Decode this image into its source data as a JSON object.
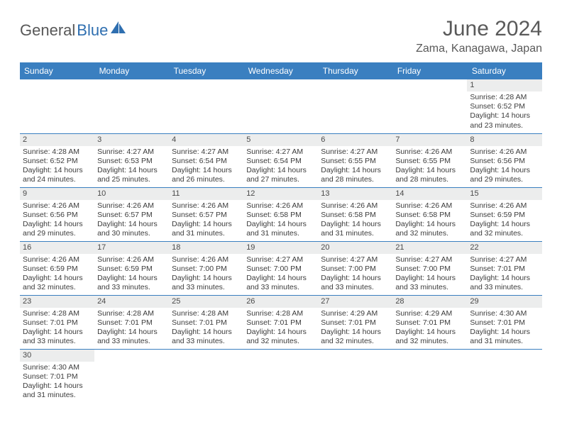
{
  "brand": {
    "part1": "General",
    "part2": "Blue"
  },
  "title": "June 2024",
  "location": "Zama, Kanagawa, Japan",
  "colors": {
    "header_bg": "#3a7fc0",
    "header_text": "#ffffff",
    "daynum_bg": "#eceded",
    "text": "#3c3c3c",
    "title_text": "#5a5a5a",
    "row_border": "#3a7fc0"
  },
  "weekdays": [
    "Sunday",
    "Monday",
    "Tuesday",
    "Wednesday",
    "Thursday",
    "Friday",
    "Saturday"
  ],
  "weeks": [
    [
      null,
      null,
      null,
      null,
      null,
      null,
      {
        "n": "1",
        "sunrise": "Sunrise: 4:28 AM",
        "sunset": "Sunset: 6:52 PM",
        "day1": "Daylight: 14 hours",
        "day2": "and 23 minutes."
      }
    ],
    [
      {
        "n": "2",
        "sunrise": "Sunrise: 4:28 AM",
        "sunset": "Sunset: 6:52 PM",
        "day1": "Daylight: 14 hours",
        "day2": "and 24 minutes."
      },
      {
        "n": "3",
        "sunrise": "Sunrise: 4:27 AM",
        "sunset": "Sunset: 6:53 PM",
        "day1": "Daylight: 14 hours",
        "day2": "and 25 minutes."
      },
      {
        "n": "4",
        "sunrise": "Sunrise: 4:27 AM",
        "sunset": "Sunset: 6:54 PM",
        "day1": "Daylight: 14 hours",
        "day2": "and 26 minutes."
      },
      {
        "n": "5",
        "sunrise": "Sunrise: 4:27 AM",
        "sunset": "Sunset: 6:54 PM",
        "day1": "Daylight: 14 hours",
        "day2": "and 27 minutes."
      },
      {
        "n": "6",
        "sunrise": "Sunrise: 4:27 AM",
        "sunset": "Sunset: 6:55 PM",
        "day1": "Daylight: 14 hours",
        "day2": "and 28 minutes."
      },
      {
        "n": "7",
        "sunrise": "Sunrise: 4:26 AM",
        "sunset": "Sunset: 6:55 PM",
        "day1": "Daylight: 14 hours",
        "day2": "and 28 minutes."
      },
      {
        "n": "8",
        "sunrise": "Sunrise: 4:26 AM",
        "sunset": "Sunset: 6:56 PM",
        "day1": "Daylight: 14 hours",
        "day2": "and 29 minutes."
      }
    ],
    [
      {
        "n": "9",
        "sunrise": "Sunrise: 4:26 AM",
        "sunset": "Sunset: 6:56 PM",
        "day1": "Daylight: 14 hours",
        "day2": "and 29 minutes."
      },
      {
        "n": "10",
        "sunrise": "Sunrise: 4:26 AM",
        "sunset": "Sunset: 6:57 PM",
        "day1": "Daylight: 14 hours",
        "day2": "and 30 minutes."
      },
      {
        "n": "11",
        "sunrise": "Sunrise: 4:26 AM",
        "sunset": "Sunset: 6:57 PM",
        "day1": "Daylight: 14 hours",
        "day2": "and 31 minutes."
      },
      {
        "n": "12",
        "sunrise": "Sunrise: 4:26 AM",
        "sunset": "Sunset: 6:58 PM",
        "day1": "Daylight: 14 hours",
        "day2": "and 31 minutes."
      },
      {
        "n": "13",
        "sunrise": "Sunrise: 4:26 AM",
        "sunset": "Sunset: 6:58 PM",
        "day1": "Daylight: 14 hours",
        "day2": "and 31 minutes."
      },
      {
        "n": "14",
        "sunrise": "Sunrise: 4:26 AM",
        "sunset": "Sunset: 6:58 PM",
        "day1": "Daylight: 14 hours",
        "day2": "and 32 minutes."
      },
      {
        "n": "15",
        "sunrise": "Sunrise: 4:26 AM",
        "sunset": "Sunset: 6:59 PM",
        "day1": "Daylight: 14 hours",
        "day2": "and 32 minutes."
      }
    ],
    [
      {
        "n": "16",
        "sunrise": "Sunrise: 4:26 AM",
        "sunset": "Sunset: 6:59 PM",
        "day1": "Daylight: 14 hours",
        "day2": "and 32 minutes."
      },
      {
        "n": "17",
        "sunrise": "Sunrise: 4:26 AM",
        "sunset": "Sunset: 6:59 PM",
        "day1": "Daylight: 14 hours",
        "day2": "and 33 minutes."
      },
      {
        "n": "18",
        "sunrise": "Sunrise: 4:26 AM",
        "sunset": "Sunset: 7:00 PM",
        "day1": "Daylight: 14 hours",
        "day2": "and 33 minutes."
      },
      {
        "n": "19",
        "sunrise": "Sunrise: 4:27 AM",
        "sunset": "Sunset: 7:00 PM",
        "day1": "Daylight: 14 hours",
        "day2": "and 33 minutes."
      },
      {
        "n": "20",
        "sunrise": "Sunrise: 4:27 AM",
        "sunset": "Sunset: 7:00 PM",
        "day1": "Daylight: 14 hours",
        "day2": "and 33 minutes."
      },
      {
        "n": "21",
        "sunrise": "Sunrise: 4:27 AM",
        "sunset": "Sunset: 7:00 PM",
        "day1": "Daylight: 14 hours",
        "day2": "and 33 minutes."
      },
      {
        "n": "22",
        "sunrise": "Sunrise: 4:27 AM",
        "sunset": "Sunset: 7:01 PM",
        "day1": "Daylight: 14 hours",
        "day2": "and 33 minutes."
      }
    ],
    [
      {
        "n": "23",
        "sunrise": "Sunrise: 4:28 AM",
        "sunset": "Sunset: 7:01 PM",
        "day1": "Daylight: 14 hours",
        "day2": "and 33 minutes."
      },
      {
        "n": "24",
        "sunrise": "Sunrise: 4:28 AM",
        "sunset": "Sunset: 7:01 PM",
        "day1": "Daylight: 14 hours",
        "day2": "and 33 minutes."
      },
      {
        "n": "25",
        "sunrise": "Sunrise: 4:28 AM",
        "sunset": "Sunset: 7:01 PM",
        "day1": "Daylight: 14 hours",
        "day2": "and 33 minutes."
      },
      {
        "n": "26",
        "sunrise": "Sunrise: 4:28 AM",
        "sunset": "Sunset: 7:01 PM",
        "day1": "Daylight: 14 hours",
        "day2": "and 32 minutes."
      },
      {
        "n": "27",
        "sunrise": "Sunrise: 4:29 AM",
        "sunset": "Sunset: 7:01 PM",
        "day1": "Daylight: 14 hours",
        "day2": "and 32 minutes."
      },
      {
        "n": "28",
        "sunrise": "Sunrise: 4:29 AM",
        "sunset": "Sunset: 7:01 PM",
        "day1": "Daylight: 14 hours",
        "day2": "and 32 minutes."
      },
      {
        "n": "29",
        "sunrise": "Sunrise: 4:30 AM",
        "sunset": "Sunset: 7:01 PM",
        "day1": "Daylight: 14 hours",
        "day2": "and 31 minutes."
      }
    ],
    [
      {
        "n": "30",
        "sunrise": "Sunrise: 4:30 AM",
        "sunset": "Sunset: 7:01 PM",
        "day1": "Daylight: 14 hours",
        "day2": "and 31 minutes."
      },
      null,
      null,
      null,
      null,
      null,
      null
    ]
  ]
}
